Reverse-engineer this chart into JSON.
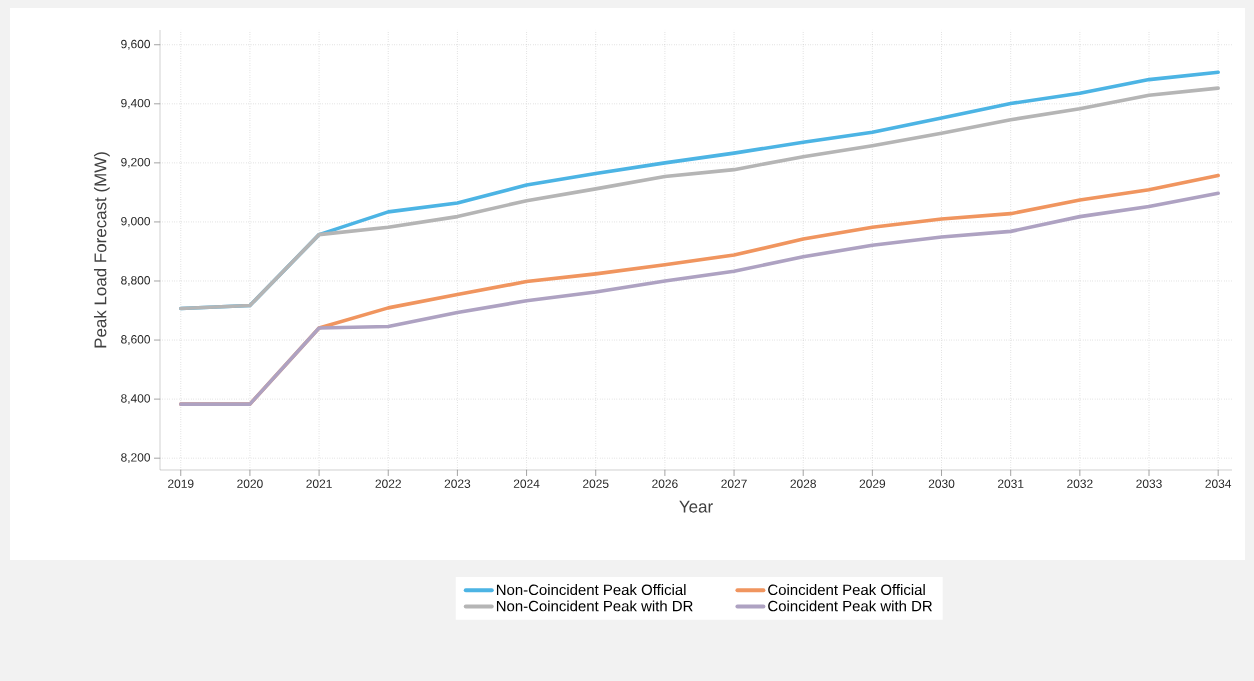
{
  "chart_data": {
    "type": "line",
    "xlabel": "Year",
    "ylabel": "Peak Load Forecast (MW)",
    "x": [
      2019,
      2020,
      2021,
      2022,
      2023,
      2024,
      2025,
      2026,
      2027,
      2028,
      2029,
      2030,
      2031,
      2032,
      2033,
      2034
    ],
    "series": [
      {
        "name": "Non-Coincident Peak Official",
        "color": "#4cb4e4",
        "values": [
          8707,
          8717,
          8957,
          9034,
          9064,
          9125,
          9164,
          9200,
          9233,
          9270,
          9304,
          9352,
          9401,
          9436,
          9482,
          9507
        ]
      },
      {
        "name": "Coincident Peak Official",
        "color": "#f0955f",
        "values": [
          8383,
          8383,
          8641,
          8709,
          8754,
          8798,
          8824,
          8855,
          8888,
          8942,
          8982,
          9010,
          9028,
          9074,
          9109,
          9157
        ]
      },
      {
        "name": "Non-Coincident Peak with DR",
        "color": "#b5b5b5",
        "values": [
          8707,
          8717,
          8957,
          8982,
          9018,
          9072,
          9112,
          9154,
          9177,
          9221,
          9258,
          9300,
          9346,
          9383,
          9429,
          9453
        ]
      },
      {
        "name": "Coincident Peak with DR",
        "color": "#aea2c2",
        "values": [
          8383,
          8383,
          8641,
          8646,
          8693,
          8733,
          8763,
          8800,
          8833,
          8882,
          8921,
          8949,
          8968,
          9018,
          9052,
          9097
        ]
      }
    ],
    "xlim": [
      2018.7,
      2034.2
    ],
    "ylim": [
      8160,
      9650
    ],
    "xticks": [
      2019,
      2020,
      2021,
      2022,
      2023,
      2024,
      2025,
      2026,
      2027,
      2028,
      2029,
      2030,
      2031,
      2032,
      2033,
      2034
    ],
    "yticks": [
      {
        "value": 8200,
        "label": "8,200"
      },
      {
        "value": 8400,
        "label": "8,400"
      },
      {
        "value": 8600,
        "label": "8,600"
      },
      {
        "value": 8800,
        "label": "8,800"
      },
      {
        "value": 9000,
        "label": "9,000"
      },
      {
        "value": 9200,
        "label": "9,200"
      },
      {
        "value": 9400,
        "label": "9,400"
      },
      {
        "value": 9600,
        "label": "9,600"
      }
    ],
    "grid": true,
    "legend": "bottom",
    "marker": "none",
    "line_style": "solid"
  }
}
